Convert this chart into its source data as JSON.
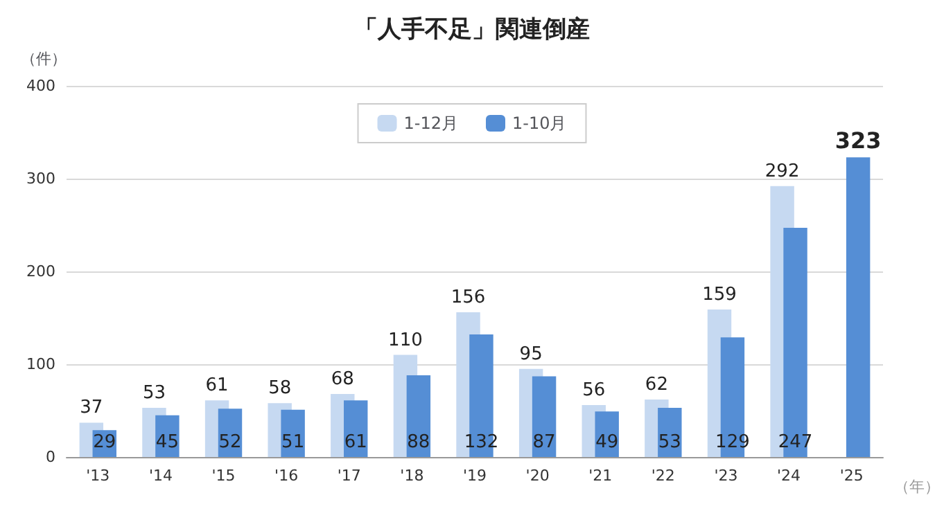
{
  "chart_data": {
    "type": "bar",
    "title": "「人手不足」関連倒産",
    "ylabel": "（件）",
    "xlabel": "（年）",
    "categories": [
      "'13",
      "'14",
      "'15",
      "'16",
      "'17",
      "'18",
      "'19",
      "'20",
      "'21",
      "'22",
      "'23",
      "'24",
      "'25"
    ],
    "series": [
      {
        "name": "1-12月",
        "color": "#c6d9f1",
        "values": [
          37,
          53,
          61,
          58,
          68,
          110,
          156,
          95,
          56,
          62,
          159,
          292,
          null
        ]
      },
      {
        "name": "1-10月",
        "color": "#558ed5",
        "values": [
          29,
          45,
          52,
          51,
          61,
          88,
          132,
          87,
          49,
          53,
          129,
          247,
          323
        ]
      }
    ],
    "ylim": [
      0,
      400
    ],
    "yticks": [
      0,
      100,
      200,
      300,
      400
    ],
    "grid": "y",
    "legend": "top",
    "data_labels": true
  }
}
